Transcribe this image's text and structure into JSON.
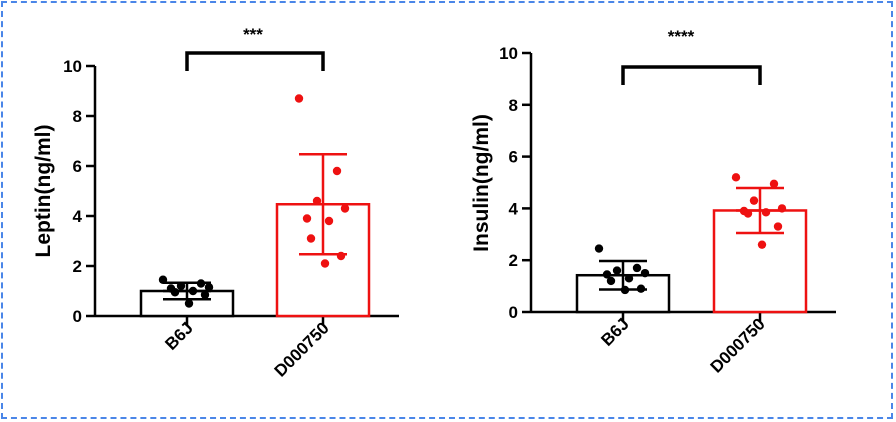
{
  "chart_data": [
    {
      "type": "bar",
      "ylabel": "Leptin(ng/ml)",
      "ylim": [
        0,
        10
      ],
      "yticks": [
        0,
        2,
        4,
        6,
        8,
        10
      ],
      "categories": [
        "B6J",
        "D000750"
      ],
      "significance": "***",
      "series": [
        {
          "name": "B6J",
          "color": "#000000",
          "mean": 1.0,
          "sd": 0.33,
          "points": [
            1.45,
            1.3,
            1.2,
            1.15,
            1.1,
            1.0,
            0.95,
            0.85,
            0.5
          ]
        },
        {
          "name": "D000750",
          "color": "#ee1111",
          "mean": 4.47,
          "sd": 2.0,
          "points": [
            8.7,
            5.8,
            4.6,
            4.3,
            3.9,
            3.8,
            3.1,
            2.4,
            2.1
          ]
        }
      ]
    },
    {
      "type": "bar",
      "ylabel": "Insulin(ng/ml)",
      "ylim": [
        0,
        10
      ],
      "yticks": [
        0,
        2,
        4,
        6,
        8,
        10
      ],
      "categories": [
        "B6J",
        "D000750"
      ],
      "significance": "****",
      "series": [
        {
          "name": "B6J",
          "color": "#000000",
          "mean": 1.42,
          "sd": 0.55,
          "points": [
            2.45,
            1.7,
            1.6,
            1.5,
            1.45,
            1.3,
            1.2,
            0.9,
            0.85
          ]
        },
        {
          "name": "D000750",
          "color": "#ee1111",
          "mean": 3.92,
          "sd": 0.87,
          "points": [
            5.2,
            4.95,
            4.3,
            4.0,
            3.9,
            3.85,
            3.8,
            3.3,
            2.6
          ]
        }
      ]
    }
  ]
}
